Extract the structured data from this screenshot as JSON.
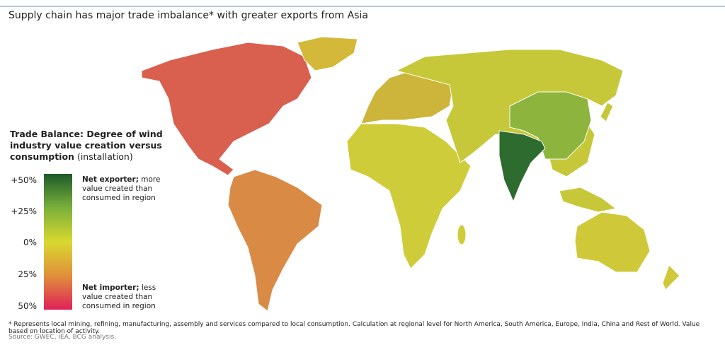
{
  "title": "Supply chain has major trade imbalance* with greater exports from Asia",
  "legend": {
    "heading": "Trade Balance: Degree of wind industry value creation versus consumption",
    "heading_note": "(installation)",
    "scale_labels": [
      "+50%",
      "+25%",
      "0%",
      "25%",
      "50%"
    ],
    "top_note_bold": "Net exporter;",
    "top_note": "more value created than consumed in region",
    "bottom_note_bold": "Net importer;",
    "bottom_note": "less value created than consumed in region"
  },
  "footnote": "* Represents local mining, refining, manufacturing, assembly and services compared to local consumption. Calculation at regional level for North America, South America, Europe, India, China and Rest of World. Value based on location of activity.",
  "source": "Source: GWEC, IEA, BCG analysis."
}
